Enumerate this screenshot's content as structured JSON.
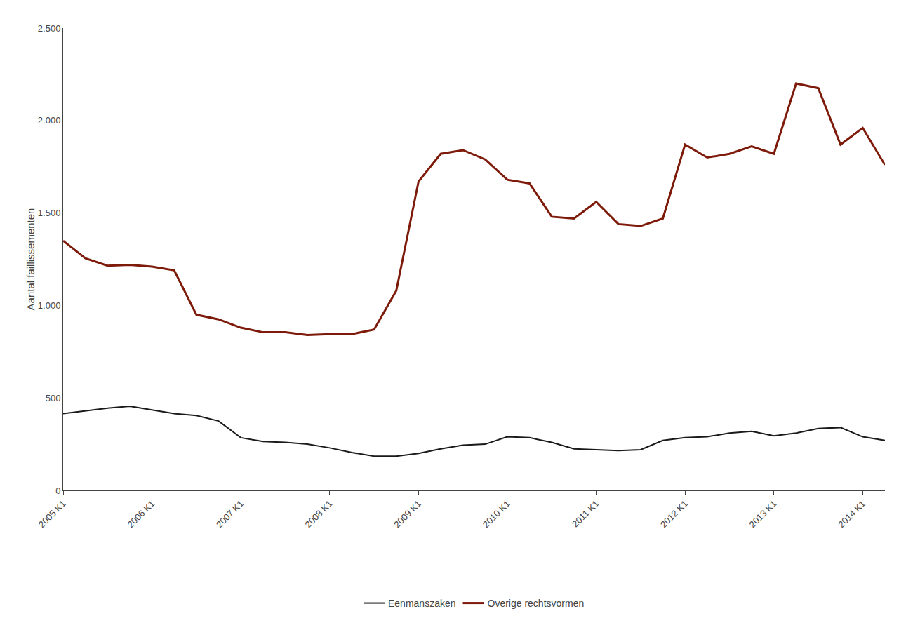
{
  "chart_data": {
    "type": "line",
    "y_label": "Aantal faillissementen",
    "categories": [
      "2005 K1",
      null,
      null,
      null,
      "2006 K1",
      null,
      null,
      null,
      "2007 K1",
      null,
      null,
      null,
      "2008 K1",
      null,
      null,
      null,
      "2009 K1",
      null,
      null,
      null,
      "2010 K1",
      null,
      null,
      null,
      "2011 K1",
      null,
      null,
      null,
      "2012 K1",
      null,
      null,
      null,
      "2013 K1",
      null,
      null,
      null,
      "2014 K1",
      null
    ],
    "series": [
      {
        "name": "Eenmanszaken",
        "color": "#1a1a1a",
        "values": [
          415,
          430,
          445,
          455,
          435,
          415,
          405,
          375,
          285,
          265,
          260,
          250,
          230,
          205,
          185,
          185,
          200,
          225,
          245,
          250,
          290,
          285,
          260,
          225,
          220,
          215,
          220,
          270,
          285,
          290,
          310,
          320,
          295,
          310,
          335,
          340,
          290,
          270
        ]
      },
      {
        "name": "Overige rechtsvormen",
        "color": "#7d1a0a",
        "values": [
          1350,
          1255,
          1215,
          1220,
          1210,
          1190,
          950,
          925,
          880,
          855,
          855,
          840,
          845,
          845,
          870,
          1080,
          1670,
          1820,
          1840,
          1790,
          1680,
          1660,
          1480,
          1470,
          1560,
          1440,
          1430,
          1470,
          1870,
          1800,
          1820,
          1860,
          1820,
          2200,
          2175,
          1870,
          1960,
          1760
        ]
      }
    ],
    "ylim": [
      0,
      2500
    ],
    "yticks": [
      0,
      500,
      {
        "value": 1000,
        "label": "1.000"
      },
      {
        "value": 1500,
        "label": "1.500"
      },
      {
        "value": 2000,
        "label": "2.000"
      },
      {
        "value": 2500,
        "label": "2.500"
      }
    ],
    "grid": false,
    "legend": "bottom"
  }
}
